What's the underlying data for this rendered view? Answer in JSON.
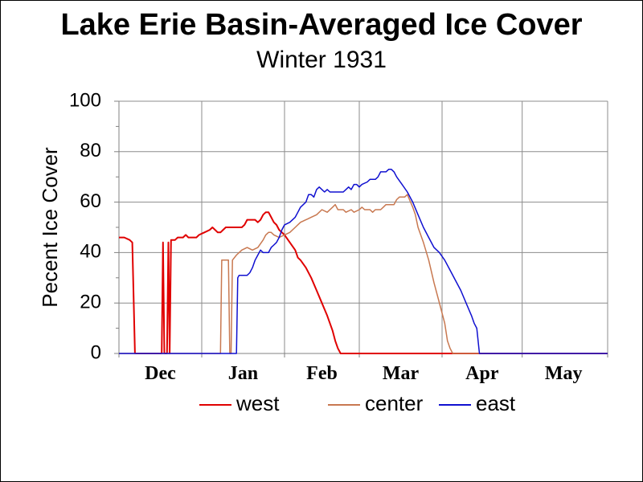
{
  "chart_data": {
    "type": "line",
    "title": "Lake Erie Basin-Averaged Ice Cover",
    "subtitle": "Winter 1931",
    "ylabel": "Pecent Ice Cover",
    "xlabel": "",
    "ylim": [
      0,
      100
    ],
    "yticks": [
      0,
      20,
      40,
      60,
      80,
      100
    ],
    "xlim": [
      0,
      183
    ],
    "month_ticks": [
      {
        "label": "Dec",
        "day": 15.5
      },
      {
        "label": "Jan",
        "day": 46.5
      },
      {
        "label": "Feb",
        "day": 76
      },
      {
        "label": "Mar",
        "day": 105.5
      },
      {
        "label": "Apr",
        "day": 136
      },
      {
        "label": "May",
        "day": 166.5
      }
    ],
    "month_bounds": [
      0,
      31,
      62,
      90,
      121,
      151,
      183
    ],
    "grid": true,
    "legend_position": "bottom",
    "series": [
      {
        "name": "west",
        "color": "#e00000",
        "points": [
          [
            0,
            46
          ],
          [
            2,
            46
          ],
          [
            4,
            45
          ],
          [
            5,
            44
          ],
          [
            6,
            0
          ],
          [
            16,
            0
          ],
          [
            16.5,
            44
          ],
          [
            17,
            0
          ],
          [
            18,
            0
          ],
          [
            18.5,
            44
          ],
          [
            19,
            0
          ],
          [
            19.5,
            45
          ],
          [
            21,
            45
          ],
          [
            22,
            46
          ],
          [
            24,
            46
          ],
          [
            25,
            47
          ],
          [
            26,
            46
          ],
          [
            29,
            46
          ],
          [
            30,
            47
          ],
          [
            32,
            48
          ],
          [
            34,
            49
          ],
          [
            35,
            50
          ],
          [
            36,
            49
          ],
          [
            37,
            48
          ],
          [
            38,
            48
          ],
          [
            39,
            49
          ],
          [
            40,
            50
          ],
          [
            46,
            50
          ],
          [
            47,
            51
          ],
          [
            48,
            53
          ],
          [
            51,
            53
          ],
          [
            52,
            52
          ],
          [
            53,
            53
          ],
          [
            54,
            55
          ],
          [
            55,
            56
          ],
          [
            56,
            56
          ],
          [
            57,
            54
          ],
          [
            58,
            52
          ],
          [
            59,
            51
          ],
          [
            60,
            49
          ],
          [
            62,
            47
          ],
          [
            64,
            44
          ],
          [
            66,
            41
          ],
          [
            67,
            38
          ],
          [
            68,
            37
          ],
          [
            70,
            34
          ],
          [
            72,
            30
          ],
          [
            74,
            25
          ],
          [
            76,
            20
          ],
          [
            78,
            15
          ],
          [
            80,
            9
          ],
          [
            81,
            5
          ],
          [
            82,
            2
          ],
          [
            83,
            0
          ],
          [
            183,
            0
          ]
        ]
      },
      {
        "name": "center",
        "color": "#c87850",
        "points": [
          [
            0,
            0
          ],
          [
            38,
            0
          ],
          [
            38.5,
            37
          ],
          [
            41,
            37
          ],
          [
            41.5,
            0
          ],
          [
            42,
            0
          ],
          [
            42.5,
            37
          ],
          [
            44,
            39
          ],
          [
            46,
            41
          ],
          [
            48,
            42
          ],
          [
            50,
            41
          ],
          [
            52,
            42
          ],
          [
            54,
            45
          ],
          [
            55,
            47
          ],
          [
            56,
            48
          ],
          [
            57,
            48
          ],
          [
            58,
            47
          ],
          [
            60,
            46
          ],
          [
            62,
            47
          ],
          [
            64,
            48
          ],
          [
            66,
            50
          ],
          [
            68,
            52
          ],
          [
            70,
            53
          ],
          [
            72,
            54
          ],
          [
            74,
            55
          ],
          [
            76,
            57
          ],
          [
            78,
            56
          ],
          [
            80,
            58
          ],
          [
            81,
            59
          ],
          [
            82,
            57
          ],
          [
            84,
            57
          ],
          [
            85,
            56
          ],
          [
            87,
            57
          ],
          [
            88,
            56
          ],
          [
            90,
            57
          ],
          [
            91,
            58
          ],
          [
            92,
            57
          ],
          [
            94,
            57
          ],
          [
            95,
            56
          ],
          [
            96,
            57
          ],
          [
            98,
            57
          ],
          [
            99,
            58
          ],
          [
            100,
            59
          ],
          [
            103,
            59
          ],
          [
            104,
            61
          ],
          [
            105,
            62
          ],
          [
            107,
            62
          ],
          [
            108,
            63
          ],
          [
            110,
            58
          ],
          [
            111,
            55
          ],
          [
            112,
            50
          ],
          [
            114,
            44
          ],
          [
            116,
            37
          ],
          [
            118,
            28
          ],
          [
            120,
            20
          ],
          [
            122,
            12
          ],
          [
            123,
            5
          ],
          [
            124,
            2
          ],
          [
            125,
            0
          ],
          [
            183,
            0
          ]
        ]
      },
      {
        "name": "east",
        "color": "#1010d0",
        "points": [
          [
            0,
            0
          ],
          [
            44,
            0
          ],
          [
            44.5,
            30
          ],
          [
            45,
            31
          ],
          [
            48,
            31
          ],
          [
            49,
            32
          ],
          [
            50,
            34
          ],
          [
            51,
            37
          ],
          [
            52,
            39
          ],
          [
            53,
            41
          ],
          [
            54,
            40
          ],
          [
            56,
            40
          ],
          [
            57,
            42
          ],
          [
            58,
            43
          ],
          [
            59,
            44
          ],
          [
            60,
            46
          ],
          [
            61,
            49
          ],
          [
            62,
            51
          ],
          [
            64,
            52
          ],
          [
            66,
            54
          ],
          [
            67,
            56
          ],
          [
            68,
            58
          ],
          [
            70,
            60
          ],
          [
            71,
            63
          ],
          [
            72,
            63
          ],
          [
            73,
            62
          ],
          [
            74,
            65
          ],
          [
            75,
            66
          ],
          [
            76,
            65
          ],
          [
            77,
            64
          ],
          [
            78,
            65
          ],
          [
            79,
            64
          ],
          [
            84,
            64
          ],
          [
            85,
            65
          ],
          [
            86,
            66
          ],
          [
            87,
            65
          ],
          [
            88,
            67
          ],
          [
            89,
            67
          ],
          [
            90,
            66
          ],
          [
            91,
            67
          ],
          [
            93,
            68
          ],
          [
            94,
            69
          ],
          [
            96,
            69
          ],
          [
            97,
            70
          ],
          [
            98,
            72
          ],
          [
            100,
            72
          ],
          [
            101,
            73
          ],
          [
            102,
            73
          ],
          [
            103,
            72
          ],
          [
            104,
            70
          ],
          [
            106,
            67
          ],
          [
            108,
            64
          ],
          [
            110,
            60
          ],
          [
            112,
            55
          ],
          [
            114,
            50
          ],
          [
            116,
            46
          ],
          [
            118,
            42
          ],
          [
            120,
            40
          ],
          [
            122,
            37
          ],
          [
            124,
            33
          ],
          [
            126,
            29
          ],
          [
            128,
            25
          ],
          [
            130,
            20
          ],
          [
            132,
            15
          ],
          [
            133,
            12
          ],
          [
            134,
            10
          ],
          [
            135,
            0
          ],
          [
            183,
            0
          ]
        ]
      }
    ]
  }
}
